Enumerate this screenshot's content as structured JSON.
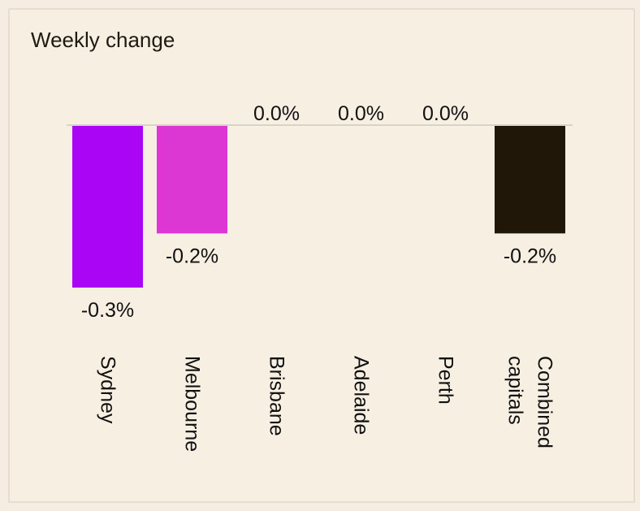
{
  "chart_data": {
    "type": "bar",
    "title": "Weekly change",
    "categories": [
      "Sydney",
      "Melbourne",
      "Brisbane",
      "Adelaide",
      "Perth",
      "Combined capitals"
    ],
    "category_lines": [
      [
        "Sydney"
      ],
      [
        "Melbourne"
      ],
      [
        "Brisbane"
      ],
      [
        "Adelaide"
      ],
      [
        "Perth"
      ],
      [
        "Combined",
        "capitals"
      ]
    ],
    "values": [
      -0.3,
      -0.2,
      0.0,
      0.0,
      0.0,
      -0.2
    ],
    "data_labels": [
      "-0.3%",
      "-0.2%",
      "0.0%",
      "0.0%",
      "0.0%",
      "-0.2%"
    ],
    "colors": [
      "#aa06f5",
      "#dc37d3",
      "#aa06f5",
      "#aa06f5",
      "#aa06f5",
      "#211709"
    ],
    "unit": "%",
    "ylim": [
      -0.3,
      0.0
    ],
    "grid": false,
    "legend": "none",
    "baseline_color": "#d9d2c7",
    "label_color": "#111111"
  }
}
